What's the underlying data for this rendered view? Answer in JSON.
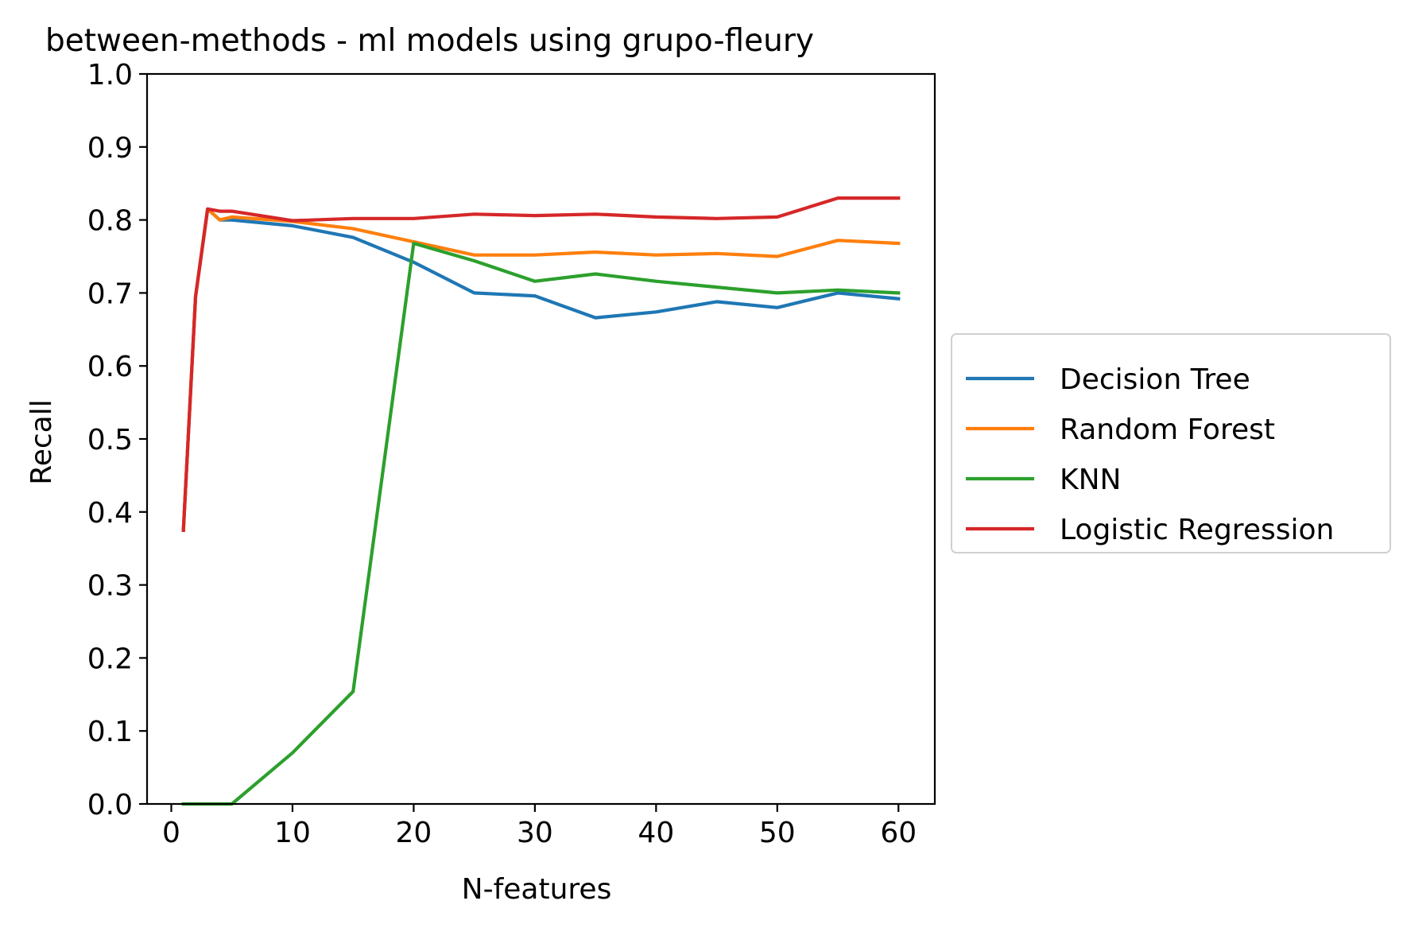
{
  "chart_data": {
    "type": "line",
    "title": "between-methods - ml models using grupo-fleury",
    "xlabel": "N-features",
    "ylabel": "Recall",
    "xlim": [
      -2,
      63
    ],
    "ylim": [
      0.0,
      1.0
    ],
    "xticks": [
      0,
      10,
      20,
      30,
      40,
      50,
      60
    ],
    "xtick_labels": [
      "0",
      "10",
      "20",
      "30",
      "40",
      "50",
      "60"
    ],
    "yticks": [
      0.0,
      0.1,
      0.2,
      0.3,
      0.4,
      0.5,
      0.6,
      0.7,
      0.8,
      0.9,
      1.0
    ],
    "ytick_labels": [
      "0.0",
      "0.1",
      "0.2",
      "0.3",
      "0.4",
      "0.5",
      "0.6",
      "0.7",
      "0.8",
      "0.9",
      "1.0"
    ],
    "grid": false,
    "legend_position": "outside-right",
    "series": [
      {
        "name": "Decision Tree",
        "color": "#1f77b4",
        "x": [
          1,
          2,
          3,
          4,
          5,
          10,
          15,
          20,
          25,
          30,
          35,
          40,
          45,
          50,
          55,
          60
        ],
        "y": [
          0.375,
          0.695,
          0.815,
          0.8,
          0.8,
          0.792,
          0.776,
          0.742,
          0.7,
          0.696,
          0.666,
          0.674,
          0.688,
          0.68,
          0.7,
          0.692
        ]
      },
      {
        "name": "Random Forest",
        "color": "#ff7f0e",
        "x": [
          1,
          2,
          3,
          4,
          5,
          10,
          15,
          20,
          25,
          30,
          35,
          40,
          45,
          50,
          55,
          60
        ],
        "y": [
          0.375,
          0.695,
          0.815,
          0.8,
          0.804,
          0.798,
          0.788,
          0.77,
          0.752,
          0.752,
          0.756,
          0.752,
          0.754,
          0.75,
          0.772,
          0.768
        ]
      },
      {
        "name": "KNN",
        "color": "#2ca02c",
        "x": [
          1,
          2,
          3,
          4,
          5,
          10,
          15,
          20,
          25,
          30,
          35,
          40,
          45,
          50,
          55,
          60
        ],
        "y": [
          0.0,
          0.0,
          0.0,
          0.0,
          0.0,
          0.07,
          0.154,
          0.768,
          0.744,
          0.716,
          0.726,
          0.716,
          0.708,
          0.7,
          0.704,
          0.7
        ]
      },
      {
        "name": "Logistic Regression",
        "color": "#d62728",
        "x": [
          1,
          2,
          3,
          4,
          5,
          10,
          15,
          20,
          25,
          30,
          35,
          40,
          45,
          50,
          55,
          60
        ],
        "y": [
          0.375,
          0.695,
          0.815,
          0.812,
          0.812,
          0.799,
          0.802,
          0.802,
          0.808,
          0.806,
          0.808,
          0.804,
          0.802,
          0.804,
          0.83,
          0.83
        ]
      }
    ]
  }
}
